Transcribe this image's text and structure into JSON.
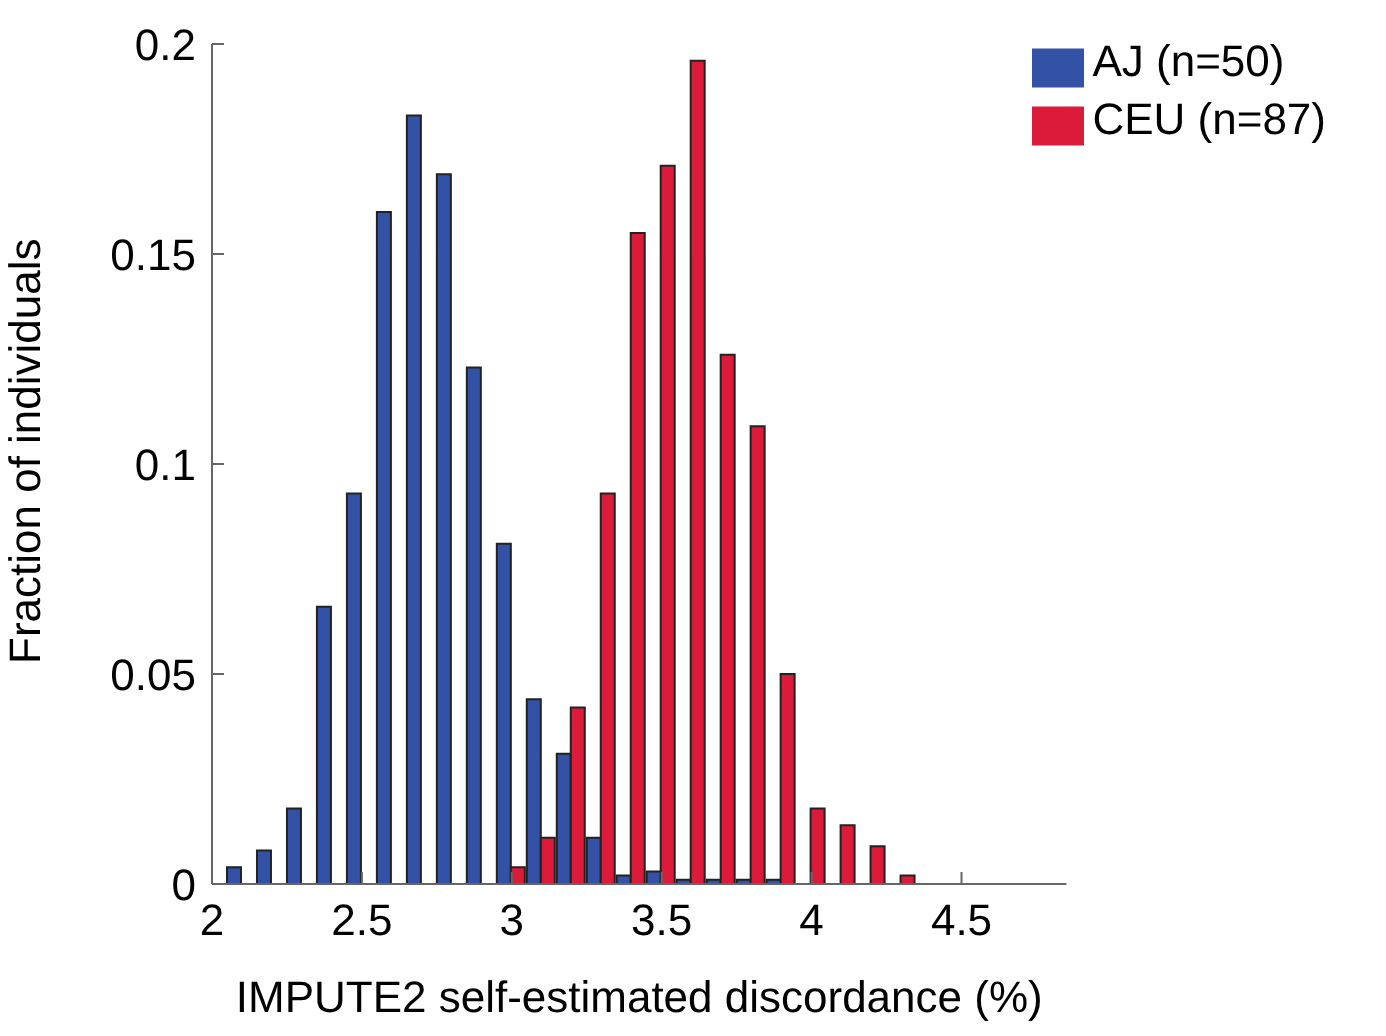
{
  "chart_data": {
    "type": "bar",
    "xlabel": "IMPUTE2 self-estimated discordance (%)",
    "ylabel": "Fraction of individuals",
    "x": [
      2.1,
      2.2,
      2.3,
      2.4,
      2.5,
      2.6,
      2.7,
      2.8,
      2.9,
      3.0,
      3.1,
      3.2,
      3.3,
      3.4,
      3.5,
      3.6,
      3.7,
      3.8,
      3.9,
      4.0,
      4.1,
      4.2,
      4.3
    ],
    "series": [
      {
        "name": "AJ (n=50)",
        "color": "#3352a5",
        "values": [
          0.004,
          0.008,
          0.018,
          0.066,
          0.093,
          0.16,
          0.183,
          0.169,
          0.123,
          0.081,
          0.044,
          0.031,
          0.011,
          0.002,
          0.003,
          0.001,
          0.001,
          0.001,
          0.001,
          null,
          null,
          null,
          null
        ]
      },
      {
        "name": "CEU (n=87)",
        "color": "#dc1a3a",
        "values": [
          null,
          null,
          null,
          null,
          null,
          null,
          null,
          null,
          null,
          0.004,
          0.011,
          0.042,
          0.093,
          0.155,
          0.171,
          0.196,
          0.126,
          0.109,
          0.05,
          0.018,
          0.014,
          0.009,
          0.002
        ]
      }
    ],
    "xlim": [
      2,
      4.85
    ],
    "xticks": [
      2,
      2.5,
      3,
      3.5,
      4,
      4.5
    ],
    "ylim": [
      0,
      0.2
    ],
    "yticks": [
      0,
      0.05,
      0.1,
      0.15,
      0.2
    ],
    "legend": "top right",
    "grid": false
  }
}
